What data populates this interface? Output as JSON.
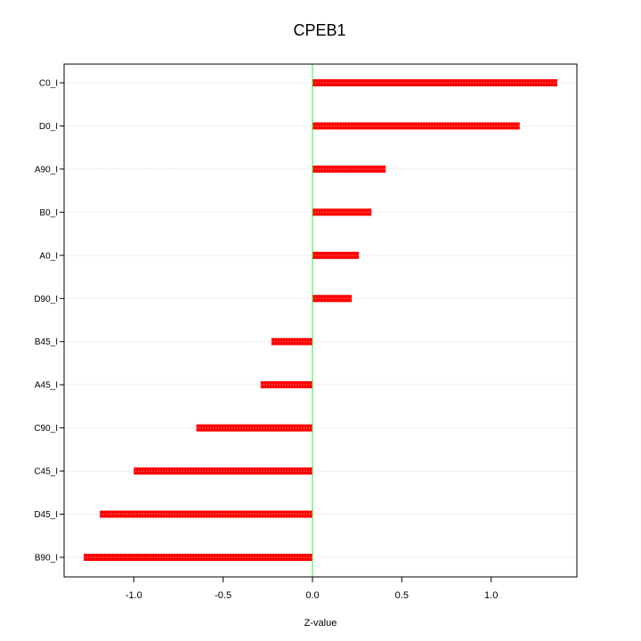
{
  "chart_data": {
    "type": "bar",
    "orientation": "horizontal",
    "title": "CPEB1",
    "xlabel": "Z-value",
    "ylabel": "",
    "categories": [
      "C0_I",
      "D0_I",
      "A90_I",
      "B0_I",
      "A0_I",
      "D90_I",
      "B45_I",
      "A45_I",
      "C90_I",
      "C45_I",
      "D45_I",
      "B90_I"
    ],
    "values": [
      1.37,
      1.16,
      0.41,
      0.33,
      0.26,
      0.22,
      -0.23,
      -0.29,
      -0.65,
      -1.0,
      -1.19,
      -1.28
    ],
    "xlim": [
      -1.39,
      1.48
    ],
    "xticks": [
      -1.0,
      -0.5,
      0.0,
      0.5,
      1.0
    ],
    "xtick_labels": [
      "-1.0",
      "-0.5",
      "0.0",
      "0.5",
      "1.0"
    ],
    "bar_color": "#ff0000",
    "zero_line_color": "#33ee33",
    "grid": "horizontal dotted",
    "legend": "none"
  }
}
